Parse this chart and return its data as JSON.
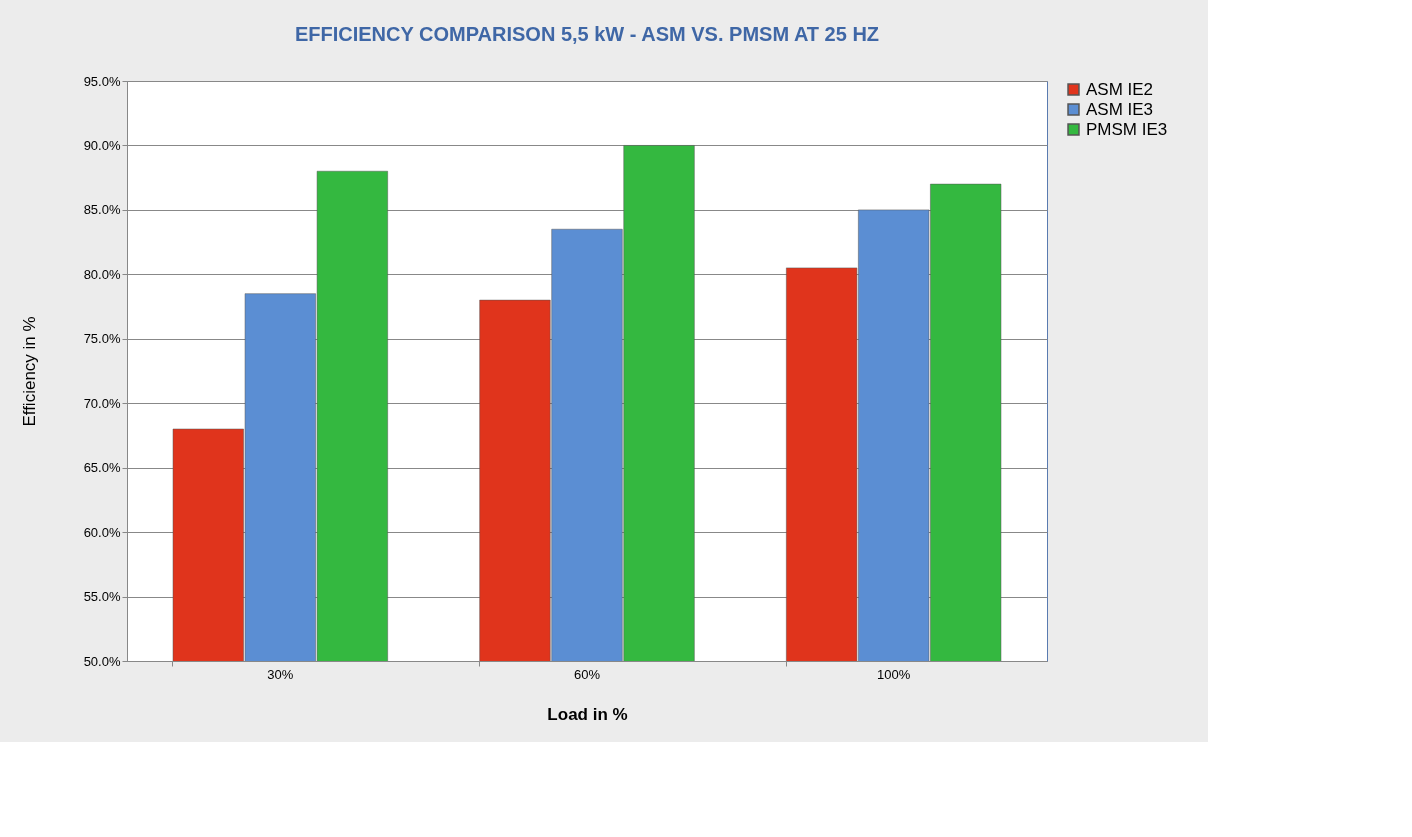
{
  "chart_data": {
    "type": "bar",
    "title": "EFFICIENCY COMPARISON  5,5 kW - ASM VS. PMSM AT 25 HZ",
    "xlabel": "Load in %",
    "ylabel": "Efficiency in %",
    "categories": [
      "30%",
      "60%",
      "100%"
    ],
    "series": [
      {
        "name": "ASM IE2",
        "color": "#e0341c",
        "values": [
          68,
          78,
          80.5
        ]
      },
      {
        "name": "ASM IE3",
        "color": "#5b8ed3",
        "values": [
          78.5,
          83.5,
          85
        ]
      },
      {
        "name": "PMSM IE3",
        "color": "#34b840",
        "values": [
          88,
          90,
          87
        ]
      }
    ],
    "ylim": [
      50,
      95
    ],
    "yticks": [
      {
        "value": 50,
        "label": "50.0%"
      },
      {
        "value": 55,
        "label": "55.0%"
      },
      {
        "value": 60,
        "label": "60.0%"
      },
      {
        "value": 65,
        "label": "65.0%"
      },
      {
        "value": 70,
        "label": "70.0%"
      },
      {
        "value": 75,
        "label": "75.0%"
      },
      {
        "value": 80,
        "label": "80.0%"
      },
      {
        "value": 85,
        "label": "85.0%"
      },
      {
        "value": 90,
        "label": "90.0%"
      },
      {
        "value": 95,
        "label": "95.0%"
      }
    ],
    "grid": "y",
    "legend": "right"
  }
}
